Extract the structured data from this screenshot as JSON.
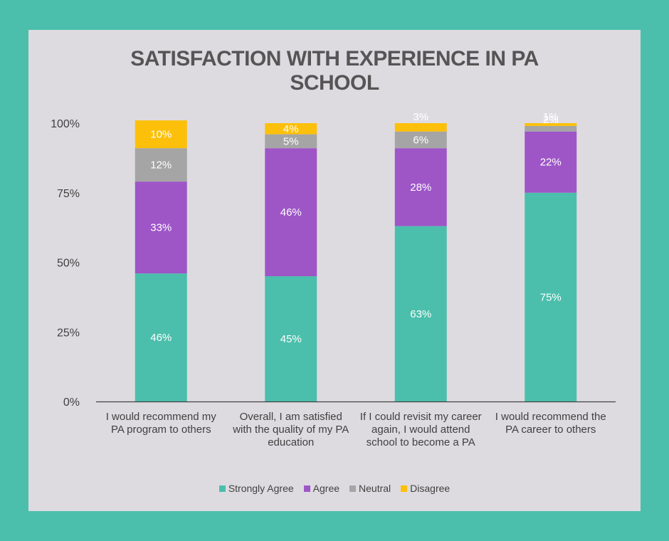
{
  "chart_data": {
    "type": "bar",
    "stacked": true,
    "title_lines": [
      "SATISFACTION WITH EXPERIENCE IN PA",
      "SCHOOL"
    ],
    "categories": [
      [
        "I would recommend my",
        "PA program to others"
      ],
      [
        "Overall, I am satisfied",
        "with the quality of my PA",
        "education"
      ],
      [
        "If I could revisit my career",
        "again, I would attend",
        "school to become a PA"
      ],
      [
        "I would recommend the",
        "PA career to others"
      ]
    ],
    "series": [
      {
        "name": "Strongly Agree",
        "color": "#4bbfac",
        "values": [
          46,
          45,
          63,
          75
        ],
        "labels": [
          "46%",
          "45%",
          "63%",
          "75%"
        ]
      },
      {
        "name": "Agree",
        "color": "#9e56c7",
        "values": [
          33,
          46,
          28,
          22
        ],
        "labels": [
          "33%",
          "46%",
          "28%",
          "22%"
        ]
      },
      {
        "name": "Neutral",
        "color": "#a5a5a5",
        "values": [
          12,
          5,
          6,
          2
        ],
        "labels": [
          "12%",
          "5%",
          "6%",
          "2%"
        ]
      },
      {
        "name": "Disagree",
        "color": "#fcc00a",
        "values": [
          10,
          4,
          3,
          1
        ],
        "labels": [
          "10%",
          "4%",
          "3%",
          "1%"
        ]
      }
    ],
    "y_ticks": [
      0,
      25,
      50,
      75,
      100
    ],
    "y_tick_labels": [
      "0%",
      "25%",
      "50%",
      "75%",
      "100%"
    ],
    "ylim": [
      0,
      100
    ],
    "legend_position": "bottom",
    "grid": false
  },
  "colors": {
    "background": "#4bbfac",
    "panel": "#dedbe0",
    "title": "#555555",
    "axis_text": "#404040"
  }
}
